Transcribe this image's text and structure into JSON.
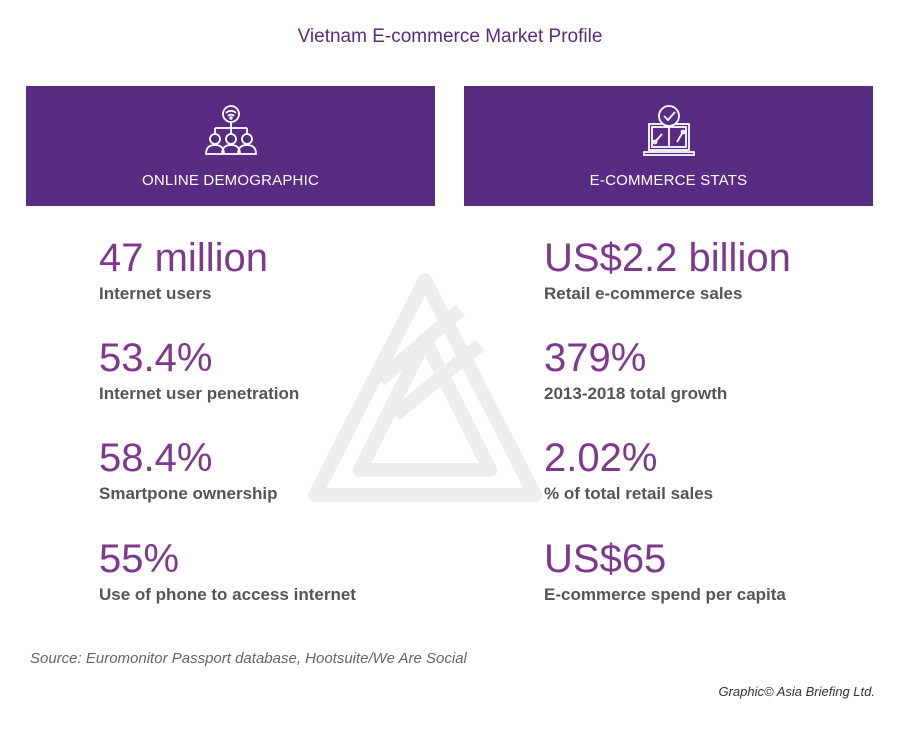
{
  "title": "Vietnam E-commerce Market Profile",
  "colors": {
    "panel": "#582c83",
    "value": "#7d3a8d",
    "label": "#555555"
  },
  "panels": [
    {
      "label": "ONLINE DEMOGRAPHIC",
      "icon": "network-users-icon",
      "stats": [
        {
          "value": "47 million",
          "label": "Internet users"
        },
        {
          "value": "53.4%",
          "label": "Internet user penetration"
        },
        {
          "value": "58.4%",
          "label": "Smartpone ownership"
        },
        {
          "value": "55%",
          "label": "Use of phone to access internet"
        }
      ]
    },
    {
      "label": "E-COMMERCE STATS",
      "icon": "laptop-analytics-icon",
      "stats": [
        {
          "value": "US$2.2 billion",
          "label": "Retail e-commerce sales"
        },
        {
          "value": "379%",
          "label": "2013-2018 total growth"
        },
        {
          "value": "2.02%",
          "label": "% of total retail sales"
        },
        {
          "value": "US$65",
          "label": "E-commerce spend per capita"
        }
      ]
    }
  ],
  "source": "Source: Euromonitor Passport database, Hootsuite/We Are Social",
  "credit": "Graphic© Asia Briefing Ltd."
}
